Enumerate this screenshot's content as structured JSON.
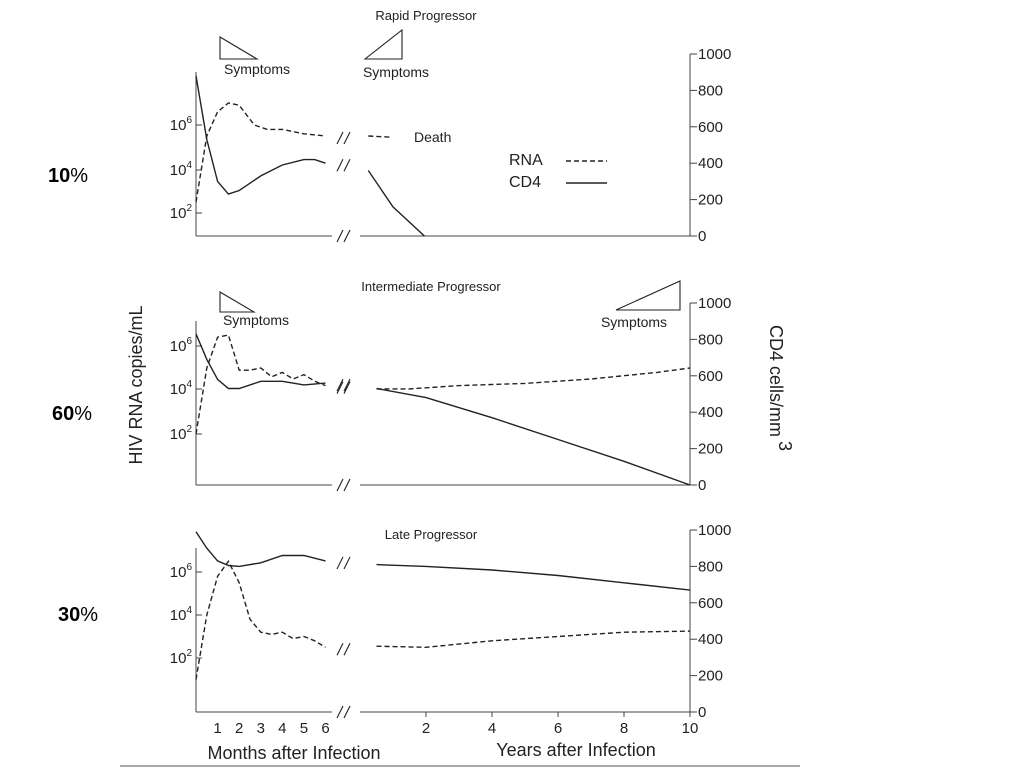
{
  "chart_data": {
    "type": "line",
    "shared": {
      "left_axis_label": "HIV RNA copies/mL",
      "left_ticks": [
        {
          "base": "10",
          "exp": "2"
        },
        {
          "base": "10",
          "exp": "4"
        },
        {
          "base": "10",
          "exp": "6"
        }
      ],
      "right_axis_label": "CD4 cells/mm",
      "right_axis_label_exp": "3",
      "right_ticks": [
        "0",
        "200",
        "400",
        "600",
        "800",
        "1000"
      ],
      "right_range": [
        0,
        1000
      ],
      "x_months_label": "Months after Infection",
      "x_months_ticks": [
        "1",
        "2",
        "3",
        "4",
        "5",
        "6"
      ],
      "x_years_label": "Years after Infection",
      "x_years_ticks": [
        "2",
        "4",
        "6",
        "8",
        "10"
      ],
      "break_mark": "//",
      "legend": [
        {
          "label": "RNA",
          "style": "dashed"
        },
        {
          "label": "CD4",
          "style": "solid"
        }
      ],
      "colors": {
        "line": "#222222",
        "axis": "#444444",
        "text": "#222222"
      }
    },
    "panels": [
      {
        "title": "Rapid Progressor",
        "percentage": {
          "num": "10",
          "sign": "%"
        },
        "symptoms": [
          "Symptoms",
          "Symptoms"
        ],
        "death_label": "Death",
        "series": [
          {
            "name": "RNA",
            "style": "dashed",
            "axis": "left",
            "months_points": [
              [
                0,
                2.5
              ],
              [
                0.5,
                5.5
              ],
              [
                1,
                6.6
              ],
              [
                1.5,
                7.0
              ],
              [
                2,
                6.9
              ],
              [
                2.7,
                6.0
              ],
              [
                3.3,
                5.8
              ],
              [
                4,
                5.8
              ],
              [
                5,
                5.6
              ],
              [
                6,
                5.5
              ]
            ],
            "years_points": [
              [
                0.25,
                5.5
              ],
              [
                0.9,
                5.45
              ]
            ]
          },
          {
            "name": "CD4",
            "style": "solid",
            "axis": "right",
            "months_points": [
              [
                0,
                880
              ],
              [
                0.5,
                530
              ],
              [
                1,
                300
              ],
              [
                1.5,
                230
              ],
              [
                2,
                250
              ],
              [
                3,
                330
              ],
              [
                4,
                390
              ],
              [
                5,
                420
              ],
              [
                5.5,
                420
              ],
              [
                6,
                400
              ]
            ],
            "years_points": [
              [
                0.25,
                360
              ],
              [
                1,
                160
              ],
              [
                1.95,
                0
              ]
            ]
          }
        ]
      },
      {
        "title": "Intermediate Progressor",
        "percentage": {
          "num": "60",
          "sign": "%"
        },
        "symptoms": [
          "Symptoms",
          "Symptoms"
        ],
        "series": [
          {
            "name": "RNA",
            "style": "dashed",
            "axis": "left",
            "months_points": [
              [
                0,
                2.0
              ],
              [
                0.5,
                5.0
              ],
              [
                1,
                6.4
              ],
              [
                1.5,
                6.5
              ],
              [
                2,
                4.9
              ],
              [
                2.5,
                4.9
              ],
              [
                3,
                5.0
              ],
              [
                3.5,
                4.6
              ],
              [
                4,
                4.8
              ],
              [
                4.5,
                4.5
              ],
              [
                5,
                4.7
              ],
              [
                5.5,
                4.4
              ],
              [
                6,
                4.2
              ]
            ],
            "years_points": [
              [
                0.5,
                4.05
              ],
              [
                1.5,
                4.05
              ],
              [
                3,
                4.2
              ],
              [
                5,
                4.3
              ],
              [
                7,
                4.5
              ],
              [
                9,
                4.8
              ],
              [
                10,
                5.0
              ]
            ]
          },
          {
            "name": "CD4",
            "style": "solid",
            "axis": "right",
            "months_points": [
              [
                0,
                830
              ],
              [
                0.5,
                690
              ],
              [
                1,
                580
              ],
              [
                1.5,
                530
              ],
              [
                2,
                530
              ],
              [
                3,
                570
              ],
              [
                4,
                570
              ],
              [
                5,
                550
              ],
              [
                6,
                560
              ]
            ],
            "years_points": [
              [
                0.5,
                530
              ],
              [
                2,
                480
              ],
              [
                4,
                370
              ],
              [
                6,
                250
              ],
              [
                8,
                130
              ],
              [
                10,
                0
              ]
            ]
          }
        ]
      },
      {
        "title": "Late Progressor",
        "percentage": {
          "num": "30",
          "sign": "%"
        },
        "series": [
          {
            "name": "RNA",
            "style": "dashed",
            "axis": "left",
            "months_points": [
              [
                0,
                1.0
              ],
              [
                0.5,
                4.0
              ],
              [
                1,
                5.8
              ],
              [
                1.5,
                6.5
              ],
              [
                2,
                5.5
              ],
              [
                2.5,
                3.8
              ],
              [
                3,
                3.2
              ],
              [
                3.5,
                3.1
              ],
              [
                4,
                3.2
              ],
              [
                4.5,
                2.9
              ],
              [
                5,
                3.0
              ],
              [
                5.5,
                2.8
              ],
              [
                6,
                2.5
              ]
            ],
            "years_points": [
              [
                0.5,
                2.55
              ],
              [
                2,
                2.5
              ],
              [
                4,
                2.8
              ],
              [
                6,
                3.0
              ],
              [
                8,
                3.2
              ],
              [
                10,
                3.25
              ]
            ]
          },
          {
            "name": "CD4",
            "style": "solid",
            "axis": "right",
            "months_points": [
              [
                0,
                990
              ],
              [
                0.5,
                900
              ],
              [
                1,
                830
              ],
              [
                1.5,
                805
              ],
              [
                2,
                800
              ],
              [
                3,
                820
              ],
              [
                4,
                860
              ],
              [
                5,
                860
              ],
              [
                6,
                830
              ]
            ],
            "years_points": [
              [
                0.5,
                810
              ],
              [
                2,
                800
              ],
              [
                4,
                780
              ],
              [
                6,
                750
              ],
              [
                8,
                710
              ],
              [
                10,
                670
              ]
            ]
          }
        ]
      }
    ]
  }
}
